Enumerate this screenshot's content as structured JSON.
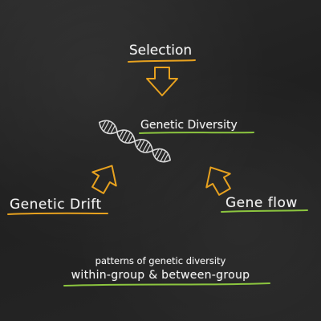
{
  "labels": {
    "selection": "Selection",
    "genetic_diversity": "Genetic Diversity",
    "genetic_drift": "Genetic Drift",
    "gene_flow": "Gene flow",
    "patterns": "patterns of genetic diversity",
    "groups": "within-group & between-group"
  },
  "icons": {
    "dna": "dna-helix-icon",
    "arrows": "outline-arrow-icon"
  },
  "colors": {
    "background": "#232323",
    "text": "#f2f2f2",
    "orange_accent": "#e8a21f",
    "green_accent": "#8cc63f",
    "dna": "#d9d9d9"
  }
}
